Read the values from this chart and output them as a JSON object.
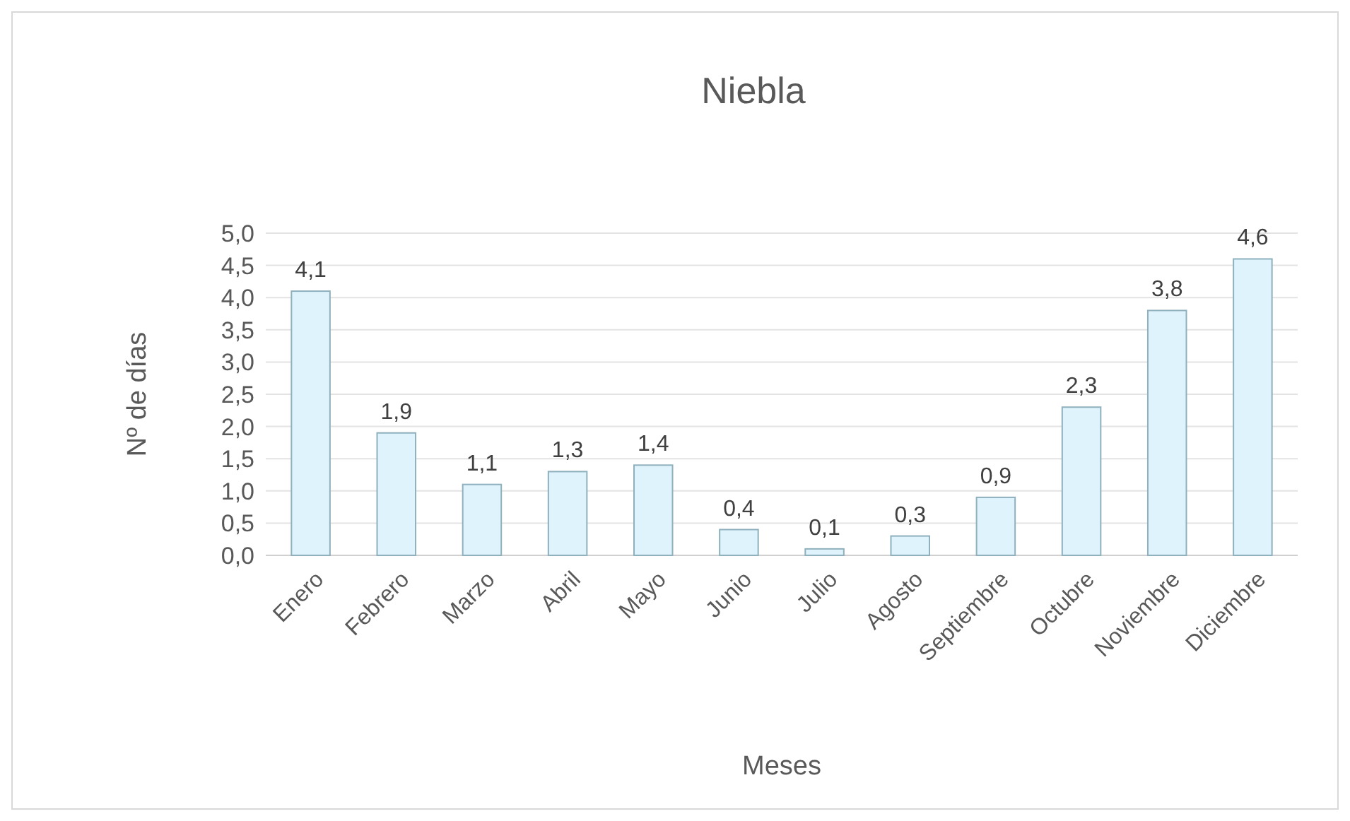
{
  "chart_data": {
    "type": "bar",
    "title": "Niebla",
    "xlabel": "Meses",
    "ylabel": "Nº de días",
    "categories": [
      "Enero",
      "Febrero",
      "Marzo",
      "Abril",
      "Mayo",
      "Junio",
      "Julio",
      "Agosto",
      "Septiembre",
      "Octubre",
      "Noviembre",
      "Diciembre"
    ],
    "values": [
      4.1,
      1.9,
      1.1,
      1.3,
      1.4,
      0.4,
      0.1,
      0.3,
      0.9,
      2.3,
      3.8,
      4.6
    ],
    "value_labels": [
      "4,1",
      "1,9",
      "1,1",
      "1,3",
      "1,4",
      "0,4",
      "0,1",
      "0,3",
      "0,9",
      "2,3",
      "3,8",
      "4,6"
    ],
    "color": "#dff3fc",
    "ylim": [
      0,
      5
    ],
    "yticks": [
      {
        "value": 0,
        "label": "0,0"
      },
      {
        "value": 0.5,
        "label": "0,5"
      },
      {
        "value": 1,
        "label": "1,0"
      },
      {
        "value": 1.5,
        "label": "1,5"
      },
      {
        "value": 2,
        "label": "2,0"
      },
      {
        "value": 2.5,
        "label": "2,5"
      },
      {
        "value": 3,
        "label": "3,0"
      },
      {
        "value": 3.5,
        "label": "3,5"
      },
      {
        "value": 4,
        "label": "4,0"
      },
      {
        "value": 4.5,
        "label": "4,5"
      },
      {
        "value": 5,
        "label": "5,0"
      }
    ],
    "grid": "y"
  }
}
